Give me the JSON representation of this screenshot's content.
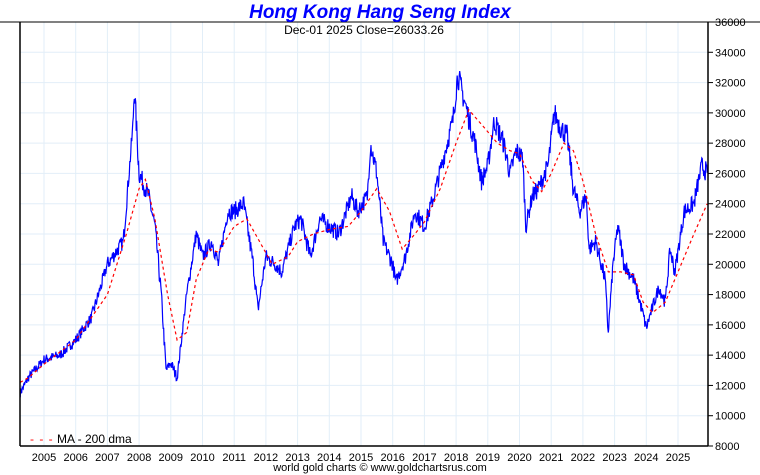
{
  "chart_data": {
    "type": "line",
    "title": "Hong Kong Hang Seng Index",
    "subtitle": "Dec-01  2025   Close=26033.26",
    "date_label": "Dec-01  2025",
    "close_label": "Close=26033.26",
    "footer": "world gold charts © www.goldchartsrus.com",
    "ylim": [
      8000,
      36000
    ],
    "xlim": [
      2004.25,
      2025.95
    ],
    "y_ticks": [
      8000,
      10000,
      12000,
      14000,
      16000,
      18000,
      20000,
      22000,
      24000,
      26000,
      28000,
      30000,
      32000,
      34000,
      36000
    ],
    "x_ticks": [
      "2005",
      "2006",
      "2007",
      "2008",
      "2009",
      "2010",
      "2011",
      "2012",
      "2013",
      "2014",
      "2015",
      "2016",
      "2017",
      "2018",
      "2019",
      "2020",
      "2021",
      "2022",
      "2023",
      "2024",
      "2025"
    ],
    "grid": true,
    "legend": {
      "placement": "bottom-left",
      "entries": [
        "MA - 200 dma"
      ]
    },
    "series": [
      {
        "name": "Hang Seng Index",
        "color": "#0000ff",
        "x": [
          2004.25,
          2004.5,
          2005.0,
          2005.5,
          2006.0,
          2006.5,
          2007.0,
          2007.5,
          2007.8,
          2007.85,
          2008.0,
          2008.3,
          2008.5,
          2008.7,
          2008.85,
          2009.0,
          2009.2,
          2009.5,
          2009.8,
          2010.0,
          2010.3,
          2010.5,
          2010.8,
          2011.0,
          2011.3,
          2011.6,
          2011.75,
          2012.0,
          2012.3,
          2012.5,
          2012.9,
          2013.1,
          2013.4,
          2013.7,
          2014.0,
          2014.3,
          2014.7,
          2014.9,
          2015.2,
          2015.3,
          2015.5,
          2015.7,
          2016.0,
          2016.1,
          2016.4,
          2016.7,
          2017.0,
          2017.3,
          2017.6,
          2017.9,
          2018.05,
          2018.3,
          2018.6,
          2018.8,
          2019.0,
          2019.2,
          2019.5,
          2019.7,
          2019.9,
          2020.1,
          2020.2,
          2020.4,
          2020.6,
          2020.9,
          2021.1,
          2021.3,
          2021.5,
          2021.7,
          2021.9,
          2022.1,
          2022.2,
          2022.4,
          2022.7,
          2022.8,
          2022.95,
          2023.1,
          2023.3,
          2023.6,
          2023.8,
          2024.0,
          2024.1,
          2024.4,
          2024.6,
          2024.75,
          2024.9,
          2025.2,
          2025.5,
          2025.75,
          2025.92
        ],
        "values": [
          11500,
          12500,
          13700,
          14000,
          15000,
          16500,
          20000,
          21500,
          29000,
          31600,
          26000,
          24500,
          22500,
          18000,
          13000,
          13500,
          12500,
          18000,
          22000,
          20500,
          21500,
          20000,
          23500,
          23500,
          24000,
          20000,
          17000,
          20500,
          20000,
          19500,
          22500,
          23000,
          20500,
          23000,
          22500,
          22000,
          24500,
          23500,
          24500,
          28000,
          26000,
          21500,
          20000,
          18800,
          20500,
          23500,
          22500,
          24500,
          27000,
          29500,
          32500,
          30500,
          28000,
          25500,
          26500,
          29500,
          28000,
          26000,
          27500,
          27000,
          22500,
          24500,
          25000,
          26500,
          30000,
          29000,
          28500,
          25000,
          23500,
          24500,
          21000,
          21500,
          19000,
          15500,
          20000,
          22500,
          20000,
          19000,
          17500,
          15800,
          16500,
          18500,
          17500,
          21000,
          19500,
          23500,
          24000,
          26500,
          26033
        ]
      },
      {
        "name": "MA - 200 dma",
        "color": "#ff0000",
        "x": [
          2004.25,
          2004.5,
          2005.0,
          2006.0,
          2007.0,
          2007.6,
          2008.0,
          2008.2,
          2008.5,
          2008.9,
          2009.2,
          2009.5,
          2009.8,
          2010.2,
          2010.5,
          2011.0,
          2011.4,
          2011.8,
          2012.2,
          2012.7,
          2013.0,
          2013.5,
          2014.0,
          2014.6,
          2015.0,
          2015.5,
          2015.9,
          2016.3,
          2016.7,
          2017.0,
          2017.5,
          2018.0,
          2018.4,
          2018.9,
          2019.3,
          2019.7,
          2020.0,
          2020.4,
          2020.7,
          2021.0,
          2021.4,
          2021.7,
          2022.0,
          2022.4,
          2022.8,
          2023.2,
          2023.6,
          2023.9,
          2024.2,
          2024.6,
          2025.0,
          2025.5,
          2025.92
        ],
        "values": [
          12200,
          12500,
          13400,
          15000,
          18000,
          22000,
          25000,
          25600,
          23000,
          18000,
          15000,
          15500,
          19000,
          21000,
          20800,
          22500,
          23000,
          21500,
          20000,
          20500,
          21500,
          22000,
          22300,
          22500,
          23500,
          25000,
          23500,
          21000,
          22000,
          22800,
          25000,
          28000,
          30200,
          29000,
          28000,
          27500,
          27300,
          25500,
          24800,
          26000,
          28000,
          27500,
          25500,
          22000,
          19500,
          19500,
          19300,
          17500,
          16800,
          17500,
          19500,
          22000,
          24000
        ]
      }
    ]
  }
}
